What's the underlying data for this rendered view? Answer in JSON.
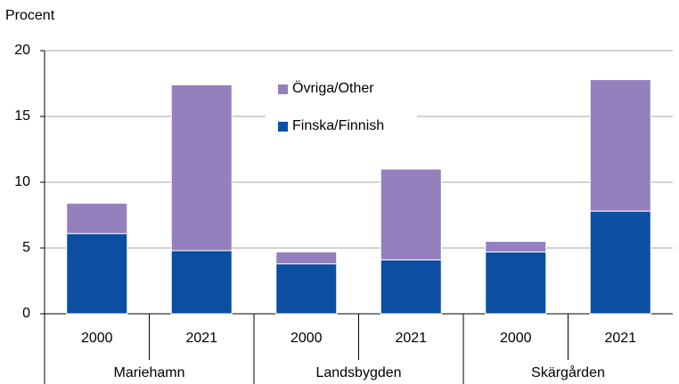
{
  "chart_data": {
    "type": "stacked_bar",
    "y_axis_label": "Procent",
    "categories": [
      "2000",
      "2021",
      "2000",
      "2021",
      "2000",
      "2021"
    ],
    "groups": [
      "Mariehamn",
      "Landsbygden",
      "Skärgården"
    ],
    "series": [
      {
        "name": "Finska/Finnish",
        "color": "#0b4ea2",
        "values": [
          6.1,
          4.8,
          3.8,
          4.1,
          4.7,
          7.8
        ]
      },
      {
        "name": "Övriga/Other",
        "color": "#9480bd",
        "values": [
          2.3,
          12.6,
          0.9,
          6.9,
          0.8,
          10.0
        ]
      }
    ],
    "ylim": [
      0,
      20
    ],
    "yticks": [
      0,
      5,
      10,
      15,
      20
    ],
    "grid": true
  }
}
